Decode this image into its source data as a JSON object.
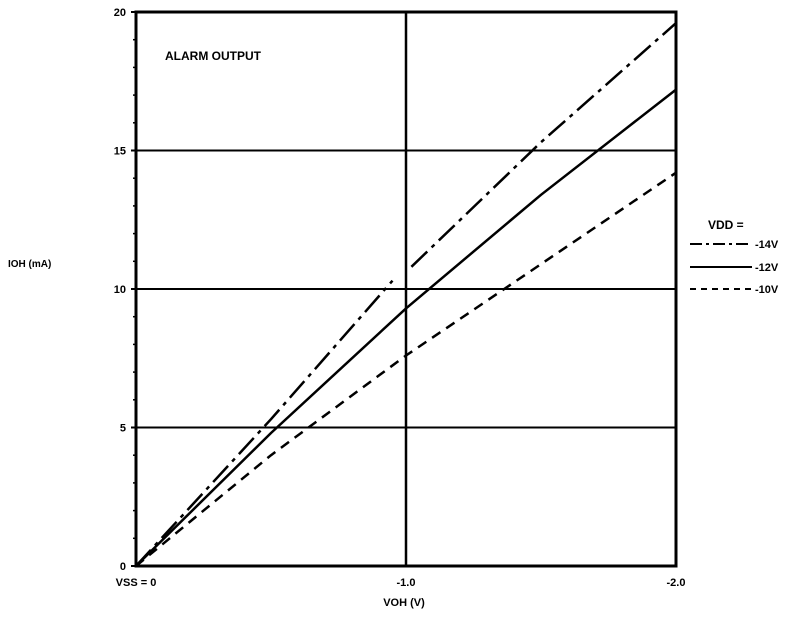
{
  "chart_data": {
    "type": "line",
    "title": "ALARM OUTPUT",
    "xlabel": "VOH (V)",
    "ylabel": "IOH (mA)",
    "xlim": [
      0,
      -2.0
    ],
    "ylim": [
      0,
      20
    ],
    "grid": true,
    "legend_title": "VDD =",
    "legend_position": "right",
    "x_ticks": [
      {
        "value": 0,
        "label": "VSS = 0"
      },
      {
        "value": -1.0,
        "label": "-1.0"
      },
      {
        "value": -2.0,
        "label": "-2.0"
      }
    ],
    "y_ticks": [
      {
        "value": 0,
        "label": "0"
      },
      {
        "value": 5,
        "label": "5"
      },
      {
        "value": 10,
        "label": "10"
      },
      {
        "value": 15,
        "label": "15"
      },
      {
        "value": 20,
        "label": "20"
      }
    ],
    "series": [
      {
        "name": "-14V",
        "style": "dashdot",
        "x": [
          0,
          -0.5,
          -0.95
        ],
        "y": [
          0,
          5.3,
          10.3
        ],
        "x2": [
          -1.02,
          -1.5,
          -2.0
        ],
        "y2": [
          10.8,
          15.3,
          19.6
        ]
      },
      {
        "name": "-12V",
        "style": "solid",
        "x": [
          0,
          -0.5,
          -1.0,
          -1.5,
          -2.0
        ],
        "y": [
          0,
          4.8,
          9.3,
          13.4,
          17.2
        ]
      },
      {
        "name": "-10V",
        "style": "dashed",
        "x": [
          0,
          -0.5,
          -1.0,
          -1.5,
          -2.0
        ],
        "y": [
          0,
          4.0,
          7.6,
          10.9,
          14.2
        ]
      }
    ]
  }
}
